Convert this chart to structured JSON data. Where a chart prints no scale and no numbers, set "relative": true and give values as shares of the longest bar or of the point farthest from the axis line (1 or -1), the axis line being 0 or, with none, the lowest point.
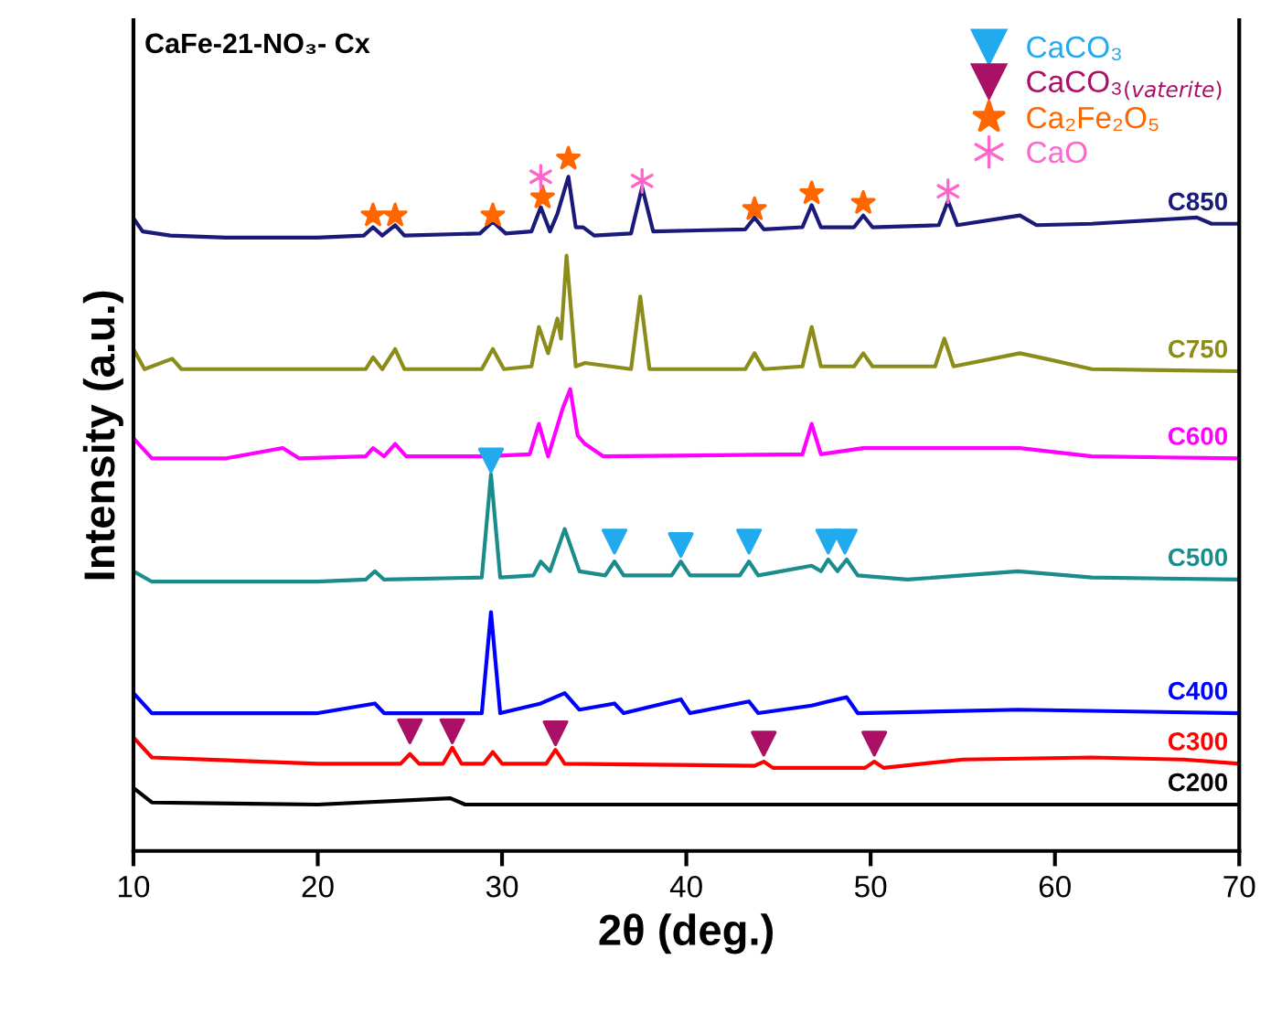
{
  "chart_data": {
    "type": "line",
    "title": "CaFe-21-NO₃- Cx",
    "xlabel": "2θ (deg.)",
    "ylabel": "Intensity (a.u.)",
    "relative": true,
    "xlim": [
      10,
      70
    ],
    "xticks": [
      10,
      20,
      30,
      40,
      50,
      60,
      70
    ],
    "tick_labels": "x",
    "legend": "top right",
    "grid": false,
    "series": [
      {
        "name": "C850",
        "color": "#1a1a7a",
        "x": [
          10,
          10.5,
          12,
          15,
          20,
          22.5,
          23,
          23.5,
          24.2,
          24.7,
          28.8,
          29.5,
          30.2,
          31.6,
          32.1,
          32.6,
          33.0,
          33.6,
          34.0,
          34.4,
          35,
          37.0,
          37.6,
          38.2,
          43.2,
          43.7,
          44.2,
          46.3,
          46.8,
          47.3,
          49.1,
          49.6,
          50.1,
          53.7,
          54.2,
          54.7,
          58.1,
          59,
          62,
          67.7,
          68.5,
          70
        ],
        "values": [
          0.914,
          0.895,
          0.889,
          0.886,
          0.886,
          0.889,
          0.901,
          0.889,
          0.904,
          0.889,
          0.892,
          0.909,
          0.892,
          0.895,
          0.93,
          0.895,
          0.92,
          0.974,
          0.901,
          0.901,
          0.889,
          0.892,
          0.959,
          0.895,
          0.898,
          0.915,
          0.898,
          0.901,
          0.933,
          0.901,
          0.901,
          0.918,
          0.901,
          0.904,
          0.939,
          0.904,
          0.918,
          0.904,
          0.906,
          0.915,
          0.906,
          0.906
        ]
      },
      {
        "name": "C750",
        "color": "#8c8c1a",
        "x": [
          10,
          10.6,
          12.1,
          12.6,
          20,
          22.6,
          23.0,
          23.5,
          24.2,
          24.7,
          28.9,
          29.5,
          30.1,
          31.6,
          32.0,
          32.5,
          33.0,
          33.2,
          33.5,
          34.0,
          34.5,
          37.0,
          37.5,
          38.0,
          43.2,
          43.7,
          44.2,
          46.3,
          46.8,
          47.3,
          49.1,
          49.6,
          50.1,
          53.5,
          54.0,
          54.5,
          58.1,
          59.5,
          62,
          70
        ],
        "values": [
          0.725,
          0.696,
          0.711,
          0.696,
          0.696,
          0.696,
          0.713,
          0.696,
          0.725,
          0.696,
          0.696,
          0.725,
          0.696,
          0.7,
          0.757,
          0.719,
          0.769,
          0.74,
          0.86,
          0.7,
          0.705,
          0.696,
          0.801,
          0.696,
          0.696,
          0.719,
          0.696,
          0.7,
          0.757,
          0.7,
          0.7,
          0.719,
          0.7,
          0.7,
          0.74,
          0.7,
          0.719,
          0.711,
          0.696,
          0.693
        ]
      },
      {
        "name": "C600",
        "color": "#ff00ff",
        "x": [
          10,
          11,
          15,
          18.1,
          19,
          22.6,
          23,
          23.6,
          24.2,
          24.8,
          29,
          31.5,
          32.0,
          32.5,
          33.3,
          33.7,
          34.1,
          34.5,
          35.5,
          46.3,
          46.8,
          47.3,
          49.6,
          58.1,
          62,
          70
        ],
        "values": [
          0.596,
          0.567,
          0.567,
          0.582,
          0.567,
          0.57,
          0.582,
          0.57,
          0.588,
          0.57,
          0.57,
          0.573,
          0.617,
          0.57,
          0.64,
          0.667,
          0.6,
          0.588,
          0.57,
          0.573,
          0.617,
          0.573,
          0.582,
          0.582,
          0.57,
          0.567
        ]
      },
      {
        "name": "C500",
        "color": "#1a8c8c",
        "x": [
          10,
          11,
          20,
          22.6,
          23.1,
          23.6,
          28.9,
          29.4,
          29.9,
          31.7,
          32.1,
          32.6,
          33.4,
          34.2,
          35.6,
          36.1,
          36.6,
          39.2,
          39.7,
          40.2,
          42.9,
          43.4,
          43.9,
          46.8,
          47.3,
          47.7,
          48.2,
          48.7,
          49.3,
          52,
          58.0,
          62,
          70
        ],
        "values": [
          0.404,
          0.389,
          0.389,
          0.392,
          0.404,
          0.392,
          0.395,
          0.544,
          0.395,
          0.398,
          0.418,
          0.404,
          0.465,
          0.404,
          0.398,
          0.418,
          0.398,
          0.398,
          0.418,
          0.398,
          0.398,
          0.418,
          0.398,
          0.412,
          0.404,
          0.421,
          0.404,
          0.421,
          0.398,
          0.392,
          0.404,
          0.395,
          0.392
        ]
      },
      {
        "name": "C400",
        "color": "#0000ff",
        "x": [
          10,
          11,
          20,
          23.1,
          23.6,
          28.9,
          29.4,
          29.9,
          32.1,
          33.4,
          34.2,
          36.1,
          36.6,
          39.7,
          40.2,
          43.4,
          43.9,
          46.8,
          47.7,
          48.7,
          49.3,
          58,
          70
        ],
        "values": [
          0.228,
          0.199,
          0.199,
          0.213,
          0.199,
          0.199,
          0.345,
          0.199,
          0.213,
          0.228,
          0.204,
          0.213,
          0.199,
          0.219,
          0.199,
          0.216,
          0.199,
          0.21,
          0.216,
          0.222,
          0.199,
          0.204,
          0.199
        ]
      },
      {
        "name": "C300",
        "color": "#ff0000",
        "x": [
          10,
          11,
          20,
          24.5,
          25.0,
          25.5,
          26.8,
          27.3,
          27.8,
          29.0,
          29.5,
          30,
          32.4,
          32.9,
          33.4,
          43.7,
          44.2,
          44.7,
          49.7,
          50.2,
          50.7,
          55,
          62,
          67,
          70
        ],
        "values": [
          0.164,
          0.135,
          0.126,
          0.126,
          0.14,
          0.126,
          0.126,
          0.149,
          0.126,
          0.126,
          0.143,
          0.126,
          0.126,
          0.146,
          0.126,
          0.123,
          0.129,
          0.12,
          0.12,
          0.129,
          0.12,
          0.132,
          0.135,
          0.132,
          0.126
        ]
      },
      {
        "name": "C200",
        "color": "#000000",
        "x": [
          10,
          11,
          20,
          27.2,
          28,
          40,
          70
        ],
        "values": [
          0.091,
          0.07,
          0.067,
          0.076,
          0.067,
          0.067,
          0.067
        ]
      },
      {
        "name": "CaCO₃",
        "type": "scatter",
        "marker": "triangle",
        "color": "#22aaee",
        "x": [
          29.4,
          36.1,
          39.7,
          43.4,
          47.7,
          48.6
        ],
        "values": [
          0.564,
          0.447,
          0.442,
          0.447,
          0.447,
          0.447
        ]
      },
      {
        "name": "CaCO₃$_{(vaterite)}$",
        "type": "scatter",
        "marker": "triangle",
        "color": "#aa1166",
        "x": [
          25.0,
          27.3,
          32.9,
          44.2,
          50.2
        ],
        "values": [
          0.173,
          0.173,
          0.17,
          0.155,
          0.155
        ]
      },
      {
        "name": "Ca₂Fe₂O₅",
        "type": "scatter",
        "marker": "star",
        "color": "#ff6600",
        "x": [
          23.0,
          24.2,
          29.5,
          32.2,
          33.6,
          43.7,
          46.8,
          49.6
        ],
        "values": [
          0.918,
          0.918,
          0.918,
          0.944,
          1.0,
          0.927,
          0.95,
          0.936
        ]
      },
      {
        "name": "CaO",
        "type": "scatter",
        "marker": "cross",
        "color": "#ff66cc",
        "x": [
          32.1,
          37.6,
          54.2
        ],
        "values": [
          0.974,
          0.968,
          0.953
        ]
      }
    ]
  }
}
